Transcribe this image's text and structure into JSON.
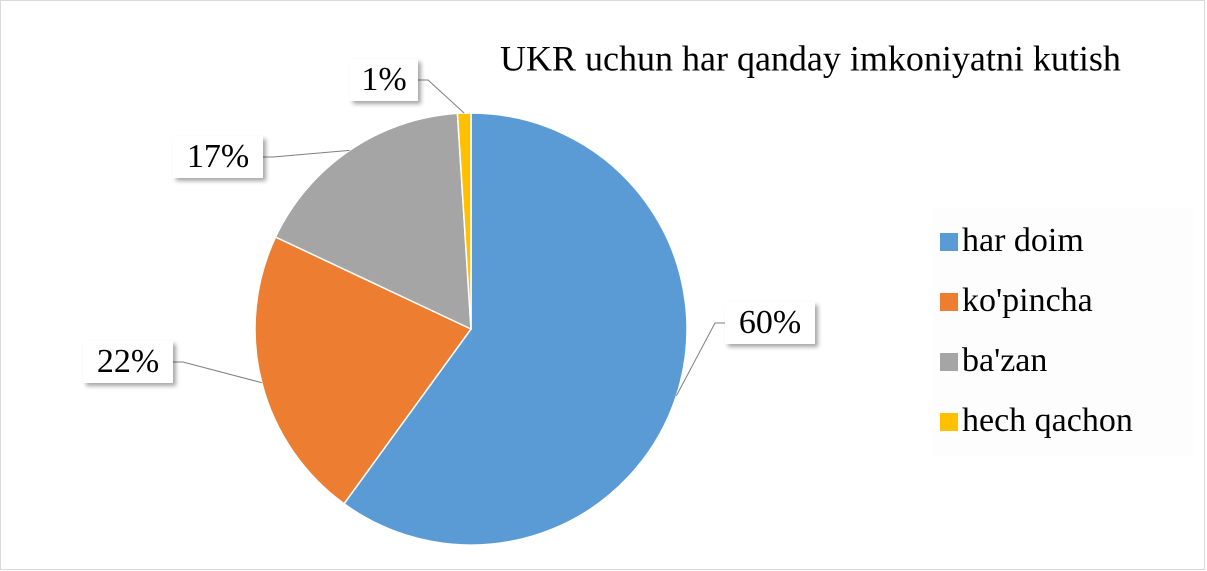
{
  "chart_data": {
    "type": "pie",
    "title": "UKR uchun har qanday imkoniyatni kutish",
    "categories": [
      "har doim",
      "ko'pincha",
      "ba'zan",
      "hech qachon"
    ],
    "values": [
      60,
      22,
      17,
      1
    ],
    "value_labels": [
      "60%",
      "22%",
      "17%",
      "1%"
    ],
    "colors": [
      "#5b9bd5",
      "#ed7d31",
      "#a5a5a5",
      "#ffc000"
    ],
    "legend": "right"
  }
}
